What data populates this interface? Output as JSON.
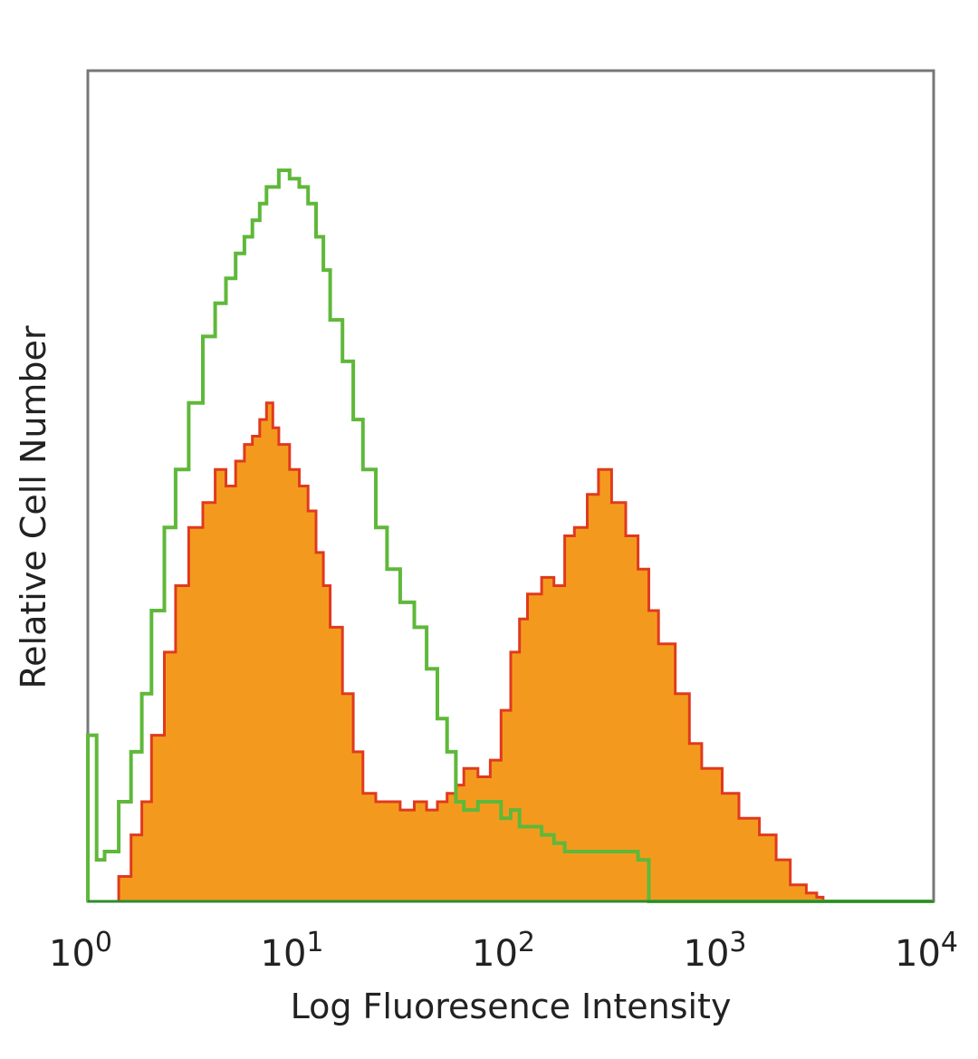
{
  "chart_data": {
    "type": "area",
    "title": "",
    "xlabel": "Log Fluoresence Intensity",
    "ylabel": "Relative Cell Number",
    "x_scale": "log",
    "xlim": [
      1,
      10000
    ],
    "ylim": [
      0,
      100
    ],
    "x_ticks": [
      {
        "base": "10",
        "exp": "0",
        "value": 1
      },
      {
        "base": "10",
        "exp": "1",
        "value": 10
      },
      {
        "base": "10",
        "exp": "2",
        "value": 100
      },
      {
        "base": "10",
        "exp": "3",
        "value": 1000
      },
      {
        "base": "10",
        "exp": "4",
        "value": 10000
      }
    ],
    "grid": false,
    "legend": "none",
    "series": [
      {
        "style": "filled",
        "fill_color": "#f39a1e",
        "edge_color": "#e03a1e",
        "x": [
          1,
          1.2,
          1.4,
          1.6,
          1.8,
          2,
          2.3,
          2.6,
          3,
          3.5,
          4,
          4.5,
          5,
          5.5,
          6,
          6.5,
          7,
          7.5,
          8,
          9,
          10,
          11,
          12,
          13,
          14,
          16,
          18,
          20,
          23,
          26,
          30,
          35,
          40,
          45,
          50,
          55,
          60,
          65,
          70,
          75,
          80,
          90,
          100,
          110,
          120,
          140,
          160,
          180,
          200,
          230,
          260,
          300,
          350,
          400,
          450,
          500,
          600,
          700,
          800,
          1000,
          1200,
          1500,
          1800,
          2100,
          2500,
          2800,
          3000,
          4000,
          10000
        ],
        "y": [
          0,
          0,
          3,
          8,
          12,
          20,
          30,
          38,
          45,
          48,
          52,
          50,
          53,
          55,
          56,
          58,
          60,
          57,
          55,
          52,
          50,
          47,
          42,
          38,
          33,
          25,
          18,
          13,
          12,
          12,
          11,
          12,
          11,
          12,
          13,
          14,
          16,
          16,
          15,
          15,
          17,
          23,
          30,
          34,
          37,
          39,
          38,
          44,
          45,
          49,
          52,
          48,
          44,
          40,
          35,
          31,
          25,
          19,
          16,
          13,
          10,
          8,
          5,
          2,
          1,
          0.5,
          0,
          0,
          0
        ]
      },
      {
        "style": "outline",
        "edge_color": "#5fb83a",
        "x": [
          1,
          1.1,
          1.2,
          1.4,
          1.6,
          1.8,
          2,
          2.3,
          2.6,
          3,
          3.5,
          4,
          4.5,
          5,
          5.5,
          6,
          6.5,
          7,
          8,
          9,
          10,
          11,
          12,
          13,
          14,
          16,
          18,
          20,
          23,
          26,
          30,
          35,
          40,
          45,
          50,
          55,
          60,
          70,
          80,
          90,
          100,
          110,
          120,
          140,
          160,
          180,
          200,
          250,
          300,
          350,
          400,
          450,
          500,
          10000
        ],
        "y": [
          20,
          5,
          6,
          12,
          18,
          25,
          35,
          45,
          52,
          60,
          68,
          72,
          75,
          78,
          80,
          82,
          84,
          86,
          88,
          87,
          86,
          84,
          80,
          76,
          70,
          65,
          58,
          52,
          45,
          40,
          36,
          33,
          28,
          22,
          18,
          12,
          11,
          12,
          12,
          10,
          11,
          9,
          9,
          8,
          7,
          6,
          6,
          6,
          6,
          6,
          5,
          0,
          0,
          0
        ]
      }
    ]
  }
}
